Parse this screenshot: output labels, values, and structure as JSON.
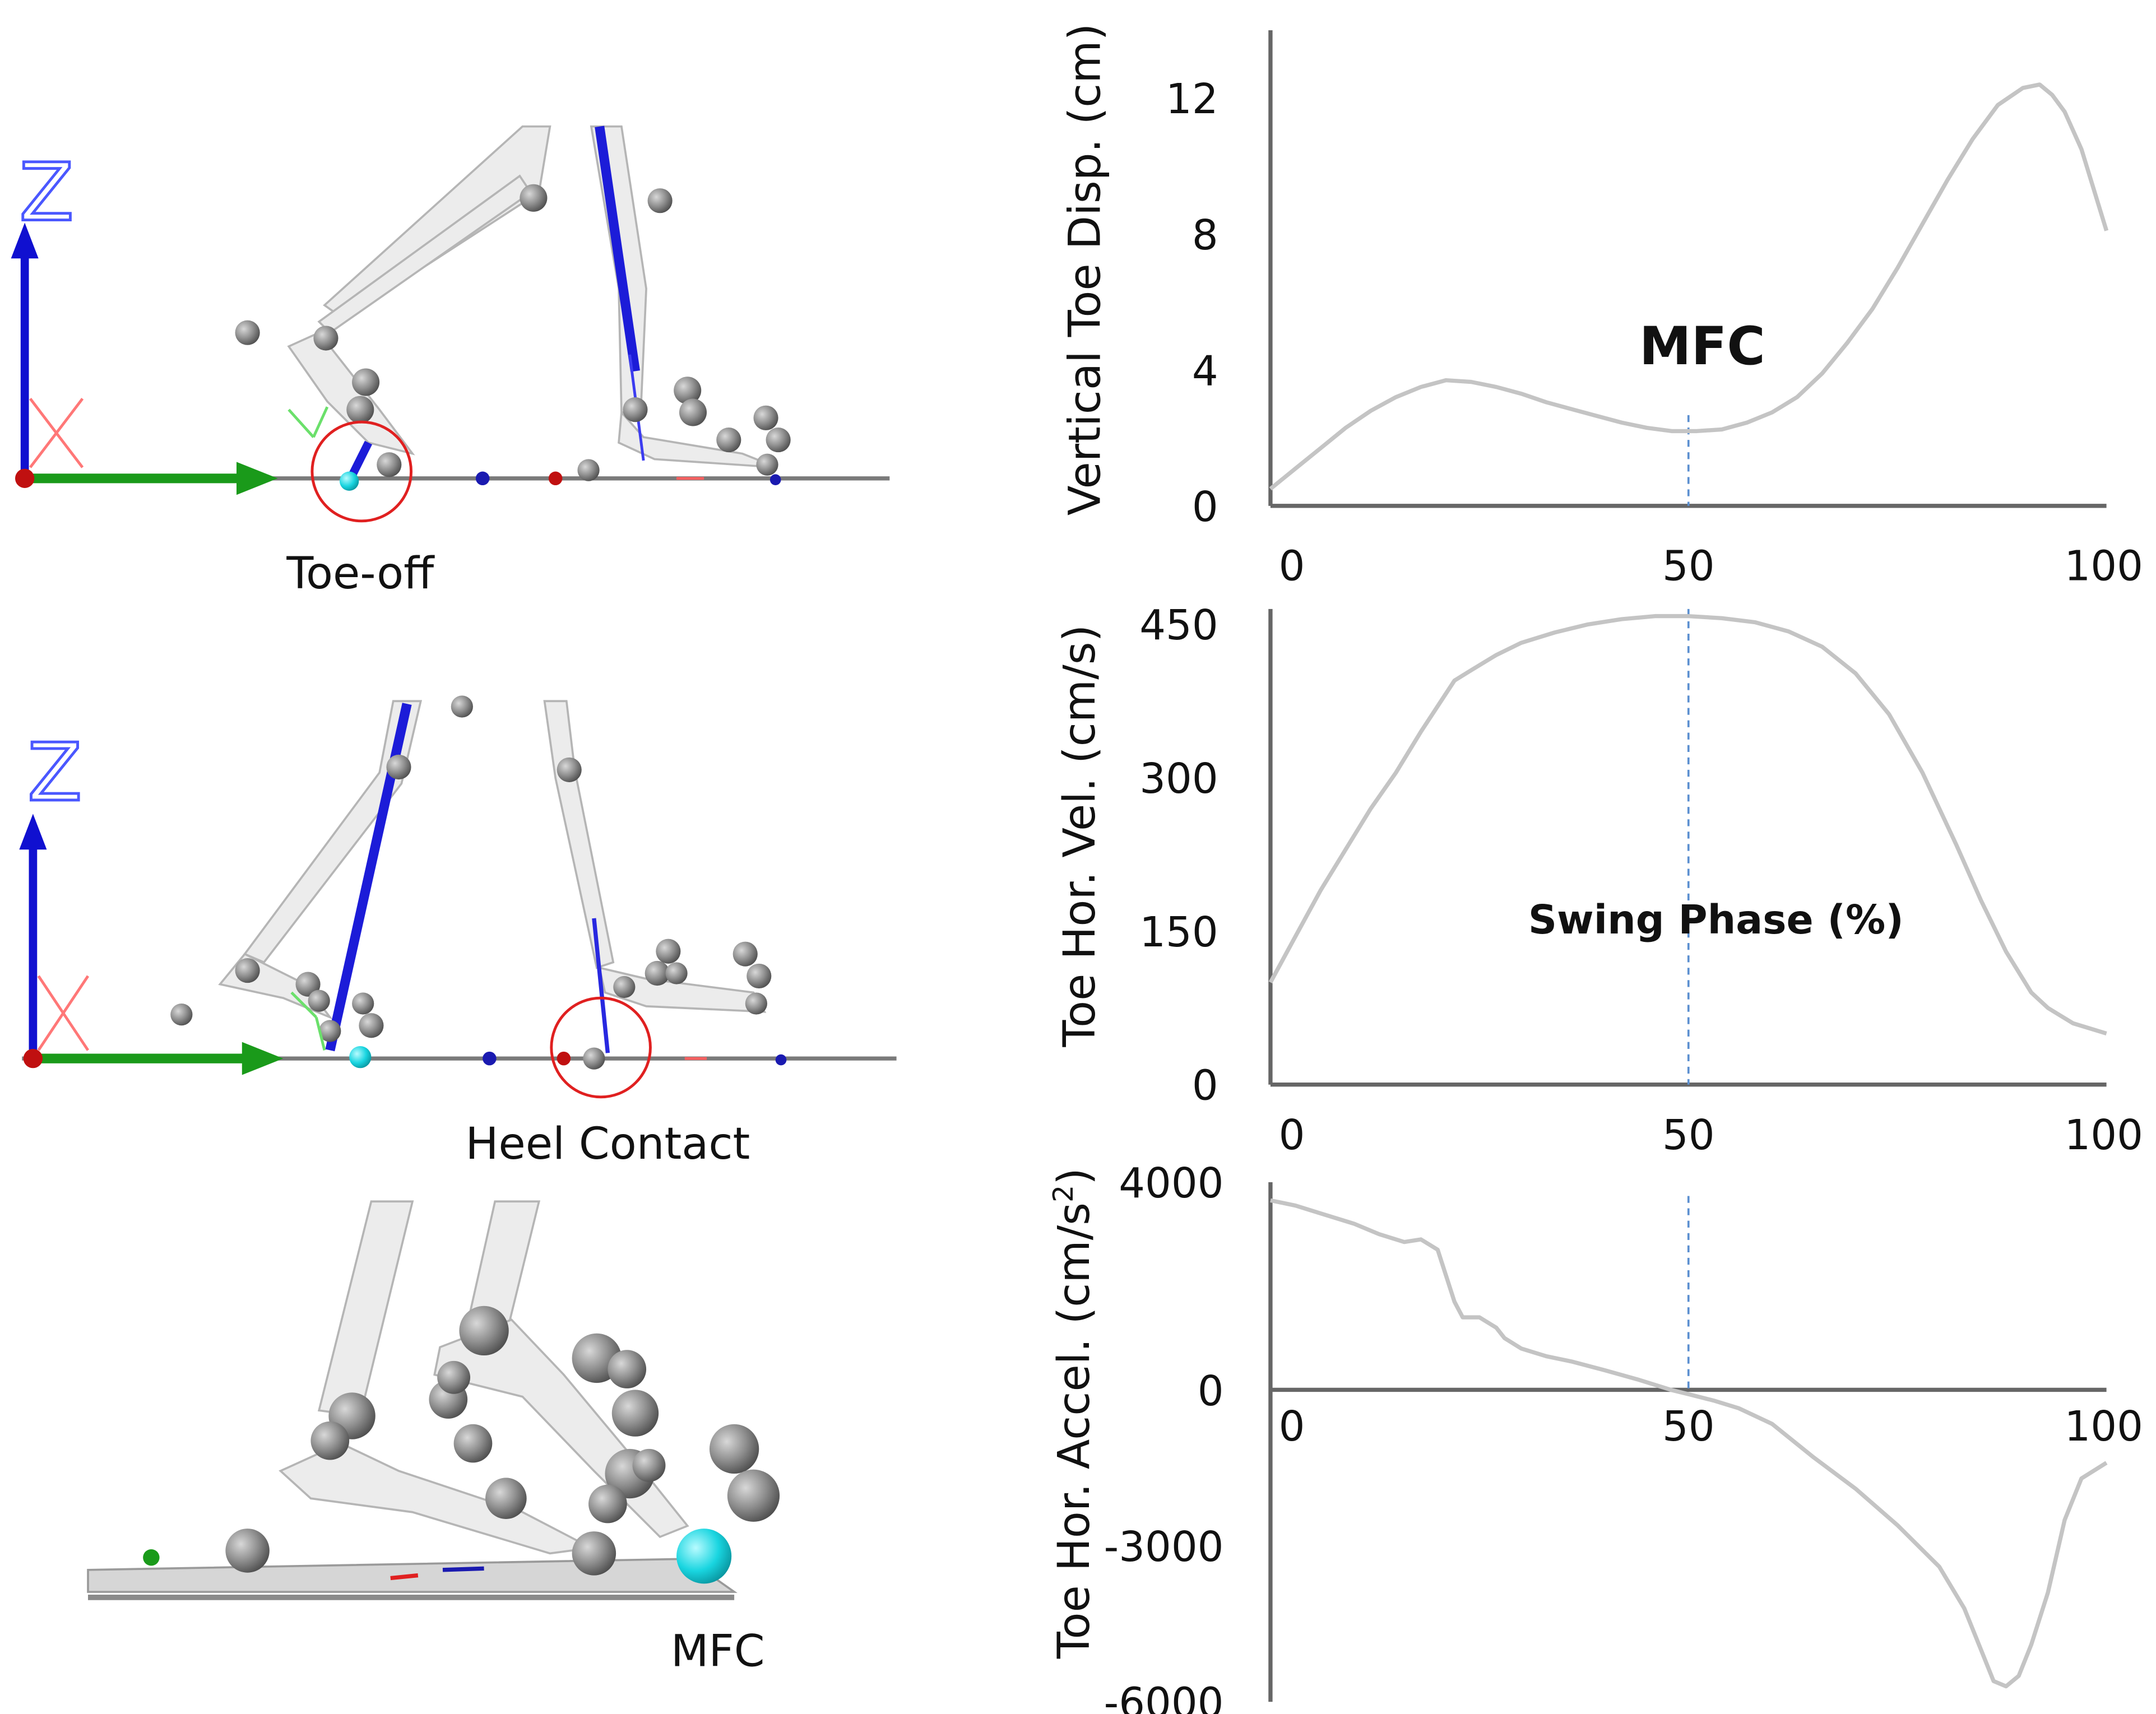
{
  "figure": {
    "captions": {
      "toe_off": "Toe-off",
      "heel_contact": "Heel Contact",
      "mfc": "MFC"
    },
    "axis_letters": {
      "z": "Z"
    }
  },
  "colors": {
    "curve": "#c4c4c4",
    "axis": "#666666",
    "marker_line": "#5b8fd0",
    "z_axis": "#1010d0",
    "y_axis": "#1a9a1a",
    "x_axis": "#ff6a6a",
    "highlight_circle": "#e02020",
    "bone": "#e8e8e8",
    "marker_ball": "#8c8c8c",
    "toe_marker": "#19d5e0"
  },
  "chart_data": [
    {
      "type": "line",
      "ylabel": "Vertical Toe Disp. (cm)",
      "ylim": [
        0,
        14
      ],
      "yticks": [
        0,
        4,
        8,
        12
      ],
      "yticklabels": [
        "0",
        "4",
        "8",
        "12"
      ],
      "xlim": [
        0,
        100
      ],
      "xticks": [
        0,
        50,
        100
      ],
      "xticklabels": [
        "0",
        "50",
        "100"
      ],
      "annotation": "MFC",
      "vline_x": 50,
      "x": [
        0,
        3,
        6,
        9,
        12,
        15,
        18,
        21,
        24,
        27,
        30,
        33,
        36,
        39,
        42,
        45,
        48,
        51,
        54,
        57,
        60,
        63,
        66,
        69,
        72,
        75,
        78,
        81,
        84,
        87,
        90,
        92,
        93.5,
        95,
        97,
        100
      ],
      "y": [
        0.5,
        1.1,
        1.7,
        2.3,
        2.8,
        3.2,
        3.5,
        3.7,
        3.65,
        3.5,
        3.3,
        3.05,
        2.85,
        2.65,
        2.45,
        2.3,
        2.2,
        2.2,
        2.25,
        2.45,
        2.75,
        3.2,
        3.9,
        4.8,
        5.8,
        7.0,
        8.3,
        9.6,
        10.8,
        11.8,
        12.3,
        12.4,
        12.1,
        11.6,
        10.5,
        8.1
      ]
    },
    {
      "type": "line",
      "ylabel": "Toe Hor. Vel. (cm/s)",
      "ylim": [
        0,
        465
      ],
      "yticks": [
        0,
        150,
        300,
        450
      ],
      "yticklabels": [
        "0",
        "150",
        "300",
        "450"
      ],
      "xlim": [
        0,
        100
      ],
      "xticks": [
        0,
        50,
        100
      ],
      "xticklabels": [
        "0",
        "50",
        "100"
      ],
      "annotation": "Swing Phase (%)",
      "vline_x": 50,
      "x": [
        0,
        3,
        6,
        9,
        12,
        15,
        18,
        20,
        22,
        24,
        27,
        30,
        34,
        38,
        42,
        46,
        50,
        54,
        58,
        62,
        66,
        70,
        74,
        78,
        82,
        85,
        88,
        91,
        93,
        96,
        100
      ],
      "y": [
        100,
        145,
        190,
        230,
        270,
        305,
        345,
        370,
        395,
        405,
        420,
        432,
        442,
        450,
        455,
        458,
        458,
        456,
        452,
        443,
        428,
        402,
        362,
        305,
        235,
        180,
        130,
        90,
        75,
        60,
        50
      ]
    },
    {
      "type": "line",
      "ylabel": "Toe Hor. Accel. (cm/s2)",
      "ylabel_parts": {
        "text": "Toe Hor. Accel. (cm/s",
        "sup": "2",
        "close": ")"
      },
      "ylim": [
        -6000,
        4000
      ],
      "yticks": [
        -6000,
        -3000,
        0,
        4000
      ],
      "yticklabels": [
        "-6000",
        "-3000",
        "0",
        "4000"
      ],
      "xlim": [
        0,
        100
      ],
      "xticks": [
        0,
        50,
        100
      ],
      "xticklabels": [
        "0",
        "50",
        "100"
      ],
      "zero_line": true,
      "vline_x": 50,
      "x": [
        0,
        3,
        6,
        10,
        13,
        16,
        18,
        20,
        21,
        22,
        23,
        25,
        27,
        28,
        30,
        33,
        36,
        40,
        44,
        48,
        50,
        53,
        56,
        60,
        65,
        70,
        75,
        80,
        83,
        85,
        86.5,
        88,
        89.5,
        91,
        93,
        95,
        97,
        100
      ],
      "y": [
        3650,
        3550,
        3400,
        3200,
        3000,
        2850,
        2900,
        2700,
        2200,
        1700,
        1400,
        1400,
        1200,
        1000,
        800,
        650,
        550,
        380,
        200,
        0,
        -80,
        -200,
        -350,
        -650,
        -1300,
        -1900,
        -2600,
        -3400,
        -4200,
        -5000,
        -5600,
        -5700,
        -5500,
        -4900,
        -3900,
        -2500,
        -1700,
        -1400
      ]
    }
  ]
}
